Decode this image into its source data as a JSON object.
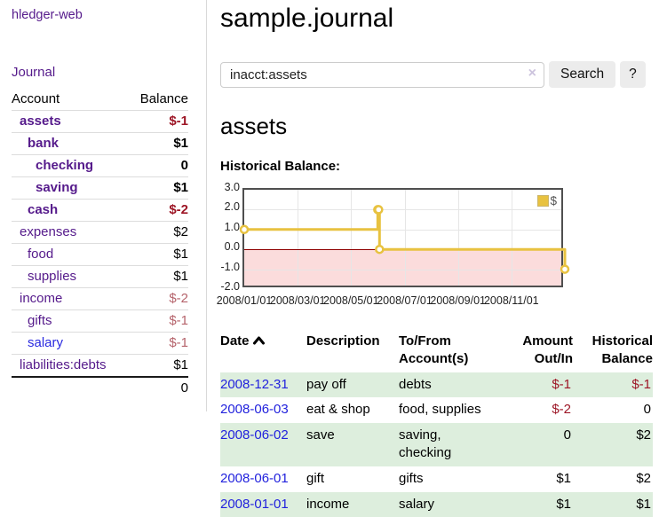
{
  "app": {
    "brand": "hledger-web",
    "nav": {
      "journal": "Journal"
    }
  },
  "sidebar": {
    "account_header": "Account",
    "balance_header": "Balance",
    "accounts": [
      {
        "name": "assets",
        "balance": "$-1"
      },
      {
        "name": "bank",
        "balance": "$1"
      },
      {
        "name": "checking",
        "balance": "0"
      },
      {
        "name": "saving",
        "balance": "$1"
      },
      {
        "name": "cash",
        "balance": "$-2"
      },
      {
        "name": "expenses",
        "balance": "$2"
      },
      {
        "name": "food",
        "balance": "$1"
      },
      {
        "name": "supplies",
        "balance": "$1"
      },
      {
        "name": "income",
        "balance": "$-2"
      },
      {
        "name": "gifts",
        "balance": "$-1"
      },
      {
        "name": "salary",
        "balance": "$-1"
      },
      {
        "name": "liabilities:debts",
        "balance": "$1"
      }
    ],
    "total": "0"
  },
  "main": {
    "title": "sample.journal",
    "search": {
      "value": "inacct:assets",
      "clear": "×",
      "submit": "Search",
      "help": "?"
    },
    "account_heading": "assets",
    "chart_title": "Historical Balance:"
  },
  "chart_data": {
    "type": "line",
    "step": true,
    "title": "Historical Balance:",
    "series": [
      {
        "name": "$",
        "color": "#e8c240",
        "points": [
          [
            "2008-01-01",
            1
          ],
          [
            "2008-06-01",
            2
          ],
          [
            "2008-06-02",
            2
          ],
          [
            "2008-06-03",
            0
          ],
          [
            "2008-12-31",
            -1
          ]
        ]
      }
    ],
    "x_range": [
      "2008-01-01",
      "2008-12-31"
    ],
    "x_tick_labels": [
      "2008/01/01",
      "2008/03/01",
      "2008/05/01",
      "2008/07/01",
      "2008/09/01",
      "2008/11/01"
    ],
    "y_tick_labels": [
      "3.0",
      "2.0",
      "1.0",
      "0.0",
      "-1.0",
      "-2.0"
    ],
    "ylim": [
      -2,
      3
    ],
    "grid": true,
    "negative_region": true,
    "legend": {
      "label": "$",
      "position": "top-right"
    }
  },
  "register": {
    "columns": {
      "date": "Date",
      "description": "Description",
      "accounts": "To/From Account(s)",
      "amount": "Amount Out/In",
      "balance": "Historical Balance"
    },
    "rows": [
      {
        "date": "2008-12-31",
        "description": "pay off",
        "accounts": "debts",
        "amount": "$-1",
        "balance": "$-1"
      },
      {
        "date": "2008-06-03",
        "description": "eat & shop",
        "accounts": "food, supplies",
        "amount": "$-2",
        "balance": "0"
      },
      {
        "date": "2008-06-02",
        "description": "save",
        "accounts": "saving, checking",
        "amount": "0",
        "balance": "$2"
      },
      {
        "date": "2008-06-01",
        "description": "gift",
        "accounts": "gifts",
        "amount": "$1",
        "balance": "$2"
      },
      {
        "date": "2008-01-01",
        "description": "income",
        "accounts": "salary",
        "amount": "$1",
        "balance": "$1"
      }
    ]
  }
}
